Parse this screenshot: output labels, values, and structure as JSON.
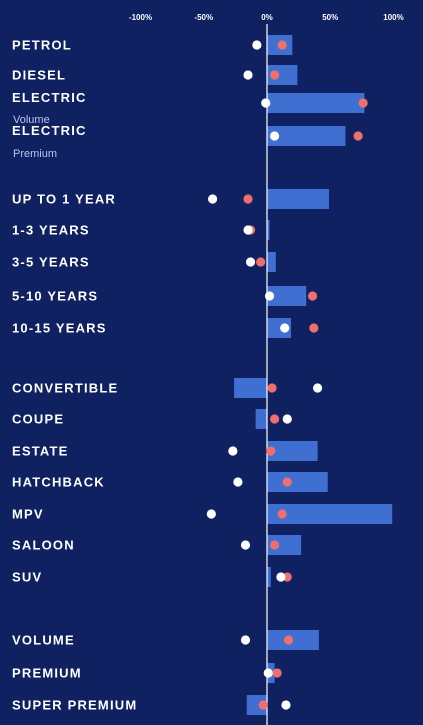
{
  "chart_data": {
    "type": "bar",
    "x_ticks": [
      "-100%",
      "-50%",
      "0%",
      "50%",
      "100%"
    ],
    "x_tick_values": [
      -100,
      -50,
      0,
      50,
      100
    ],
    "xlim": [
      -100,
      100
    ],
    "colors": {
      "background": "#0f2160",
      "bar": "#3f6fd1",
      "red_dot": "#ef6f6c",
      "white_dot": "#ffffff",
      "zero_line": "#ffffff"
    },
    "rows": [
      {
        "label": "PETROL",
        "sub": "",
        "bar": 20,
        "red": 12,
        "white": -8
      },
      {
        "label": "DIESEL",
        "sub": "",
        "bar": 24,
        "red": 6,
        "white": -15
      },
      {
        "label": "ELECTRIC",
        "sub": "Volume",
        "bar": 77,
        "red": 76,
        "white": -1
      },
      {
        "label": "ELECTRIC",
        "sub": "Premium",
        "bar": 62,
        "red": 72,
        "white": 6
      },
      {
        "label": "UP TO 1 YEAR",
        "sub": "",
        "bar": 49,
        "red": -15,
        "white": -43
      },
      {
        "label": "1-3 YEARS",
        "sub": "",
        "bar": 2,
        "red": -13,
        "white": -15
      },
      {
        "label": "3-5 YEARS",
        "sub": "",
        "bar": 7,
        "red": -5,
        "white": -13
      },
      {
        "label": "5-10 YEARS",
        "sub": "",
        "bar": 31,
        "red": 36,
        "white": 2
      },
      {
        "label": "10-15 YEARS",
        "sub": "",
        "bar": 19,
        "red": 37,
        "white": 14
      },
      {
        "label": "CONVERTIBLE",
        "sub": "",
        "bar": -26,
        "red": 4,
        "white": 40
      },
      {
        "label": "COUPE",
        "sub": "",
        "bar": -9,
        "red": 6,
        "white": 16
      },
      {
        "label": "ESTATE",
        "sub": "",
        "bar": 40,
        "red": 3,
        "white": -27
      },
      {
        "label": "HATCHBACK",
        "sub": "",
        "bar": 48,
        "red": 16,
        "white": -23
      },
      {
        "label": "MPV",
        "sub": "",
        "bar": 99,
        "red": 12,
        "white": -44
      },
      {
        "label": "SALOON",
        "sub": "",
        "bar": 27,
        "red": 6,
        "white": -17
      },
      {
        "label": "SUV",
        "sub": "",
        "bar": 3,
        "red": 16,
        "white": 11
      },
      {
        "label": "VOLUME",
        "sub": "",
        "bar": 41,
        "red": 17,
        "white": -17
      },
      {
        "label": "PREMIUM",
        "sub": "",
        "bar": 6,
        "red": 8,
        "white": 1
      },
      {
        "label": "SUPER PREMIUM",
        "sub": "",
        "bar": -16,
        "red": -3,
        "white": 15
      }
    ]
  }
}
